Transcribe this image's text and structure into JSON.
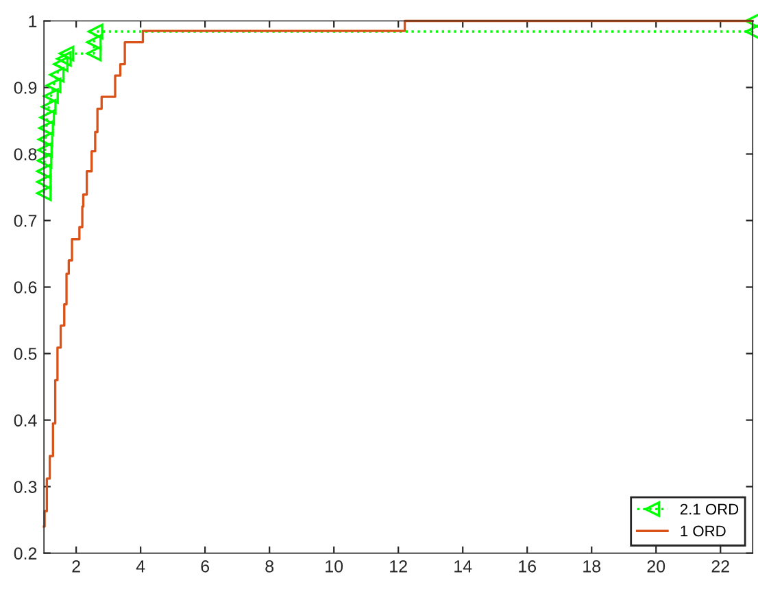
{
  "chart_data": {
    "type": "line",
    "xlim": [
      1,
      23
    ],
    "ylim": [
      0.2,
      1
    ],
    "xticks": [
      2,
      4,
      6,
      8,
      10,
      12,
      14,
      16,
      18,
      20,
      22
    ],
    "yticks": [
      0.2,
      0.3,
      0.4,
      0.5,
      0.6,
      0.7,
      0.8,
      0.9,
      1
    ],
    "grid": false,
    "legend": "bottom right",
    "series": [
      {
        "name": "2.1 ORD",
        "color": "#00ff00",
        "marker": "triangle",
        "line_style": "dotted",
        "x": [
          1.0,
          1.0,
          1.0,
          1.02,
          1.03,
          1.05,
          1.07,
          1.1,
          1.15,
          1.22,
          1.3,
          1.4,
          1.52,
          1.62,
          1.7,
          2.55,
          2.55,
          2.6,
          23,
          23
        ],
        "values": [
          0.741,
          0.758,
          0.774,
          0.79,
          0.806,
          0.822,
          0.839,
          0.855,
          0.871,
          0.887,
          0.903,
          0.919,
          0.935,
          0.943,
          0.951,
          0.951,
          0.968,
          0.984,
          0.984,
          1.0
        ]
      },
      {
        "name": "1 ORD",
        "type": "step",
        "color": "#d95319",
        "marker": "none",
        "line_style": "solid",
        "x": [
          1.0,
          1.02,
          1.09,
          1.18,
          1.28,
          1.35,
          1.42,
          1.52,
          1.63,
          1.7,
          1.77,
          1.87,
          2.1,
          2.19,
          2.22,
          2.33,
          2.48,
          2.59,
          2.66,
          2.79,
          3.21,
          3.37,
          3.51,
          4.07,
          12.2,
          23
        ],
        "values": [
          0.24,
          0.263,
          0.312,
          0.346,
          0.395,
          0.46,
          0.509,
          0.542,
          0.574,
          0.62,
          0.64,
          0.672,
          0.69,
          0.721,
          0.739,
          0.774,
          0.804,
          0.833,
          0.868,
          0.886,
          0.918,
          0.935,
          0.968,
          0.985,
          1.0,
          1.0
        ]
      }
    ]
  }
}
